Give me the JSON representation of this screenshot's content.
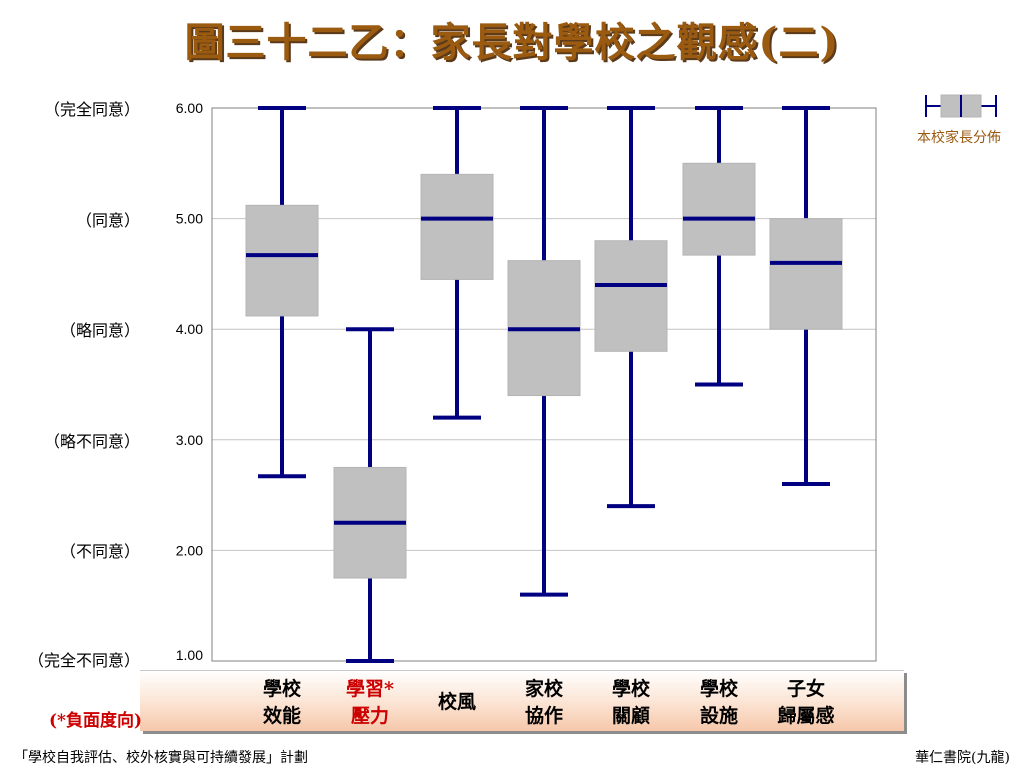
{
  "title": "圖三十二乙：家長對學校之觀感(二)",
  "scale_labels": [
    "（完全同意）",
    "（同意）",
    "（略同意）",
    "（略不同意）",
    "（不同意）",
    "（完全不同意）"
  ],
  "negative_note": "(*負面度向)",
  "legend": {
    "label": "本校家長分佈"
  },
  "footer": {
    "left": "「學校自我評估、校外核實與可持續發展」計劃",
    "right": "華仁書院(九龍)"
  },
  "colors": {
    "whisker": "#000080",
    "box": "#c0c0c0",
    "title": "#9a5a10",
    "negative": "#cc0000"
  },
  "chart_data": {
    "type": "boxplot",
    "title": "圖三十二乙：家長對學校之觀感(二)",
    "ylim": [
      1,
      6
    ],
    "yticks": [
      "6.00",
      "5.00",
      "4.00",
      "3.00",
      "2.00",
      "1.00"
    ],
    "grid": true,
    "legend_position": "top-right",
    "categories": [
      {
        "label": "學校\n效能",
        "negative": false,
        "min": 2.67,
        "q1": 4.12,
        "median": 4.67,
        "q3": 5.12,
        "max": 6.0
      },
      {
        "label": "學習*\n壓力",
        "negative": true,
        "min": 1.0,
        "q1": 1.75,
        "median": 2.25,
        "q3": 2.75,
        "max": 4.0
      },
      {
        "label": "校風",
        "negative": false,
        "min": 3.2,
        "q1": 4.45,
        "median": 5.0,
        "q3": 5.4,
        "max": 6.0
      },
      {
        "label": "家校\n協作",
        "negative": false,
        "min": 1.6,
        "q1": 3.4,
        "median": 4.0,
        "q3": 4.62,
        "max": 6.0
      },
      {
        "label": "學校\n關顧",
        "negative": false,
        "min": 2.4,
        "q1": 3.8,
        "median": 4.4,
        "q3": 4.8,
        "max": 6.0
      },
      {
        "label": "學校\n設施",
        "negative": false,
        "min": 3.5,
        "q1": 4.67,
        "median": 5.0,
        "q3": 5.5,
        "max": 6.0
      },
      {
        "label": "子女\n歸屬感",
        "negative": false,
        "min": 2.6,
        "q1": 4.0,
        "median": 4.6,
        "q3": 5.0,
        "max": 6.0
      }
    ]
  }
}
